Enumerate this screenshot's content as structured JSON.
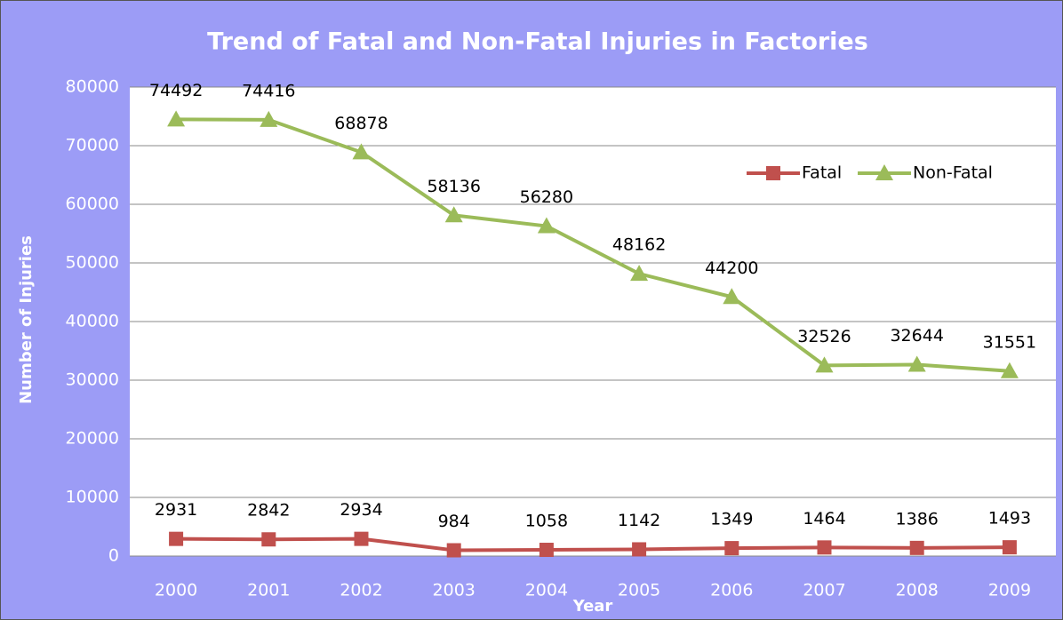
{
  "chart_data": {
    "type": "line",
    "title": "Trend of Fatal and Non-Fatal Injuries in Factories",
    "xlabel": "Year",
    "ylabel": "Number of Injuries",
    "categories": [
      "2000",
      "2001",
      "2002",
      "2003",
      "2004",
      "2005",
      "2006",
      "2007",
      "2008",
      "2009"
    ],
    "series": [
      {
        "name": "Fatal",
        "color": "#c0504d",
        "marker": "square",
        "values": [
          2931,
          2842,
          2934,
          984,
          1058,
          1142,
          1349,
          1464,
          1386,
          1493
        ]
      },
      {
        "name": "Non-Fatal",
        "color": "#9bbb59",
        "marker": "triangle",
        "values": [
          74492,
          74416,
          68878,
          58136,
          56280,
          48162,
          44200,
          32526,
          32644,
          31551
        ]
      }
    ],
    "ylim": [
      0,
      80000
    ],
    "yticks": [
      0,
      10000,
      20000,
      30000,
      40000,
      50000,
      60000,
      70000,
      80000
    ],
    "grid": true,
    "legend": "upper right"
  }
}
